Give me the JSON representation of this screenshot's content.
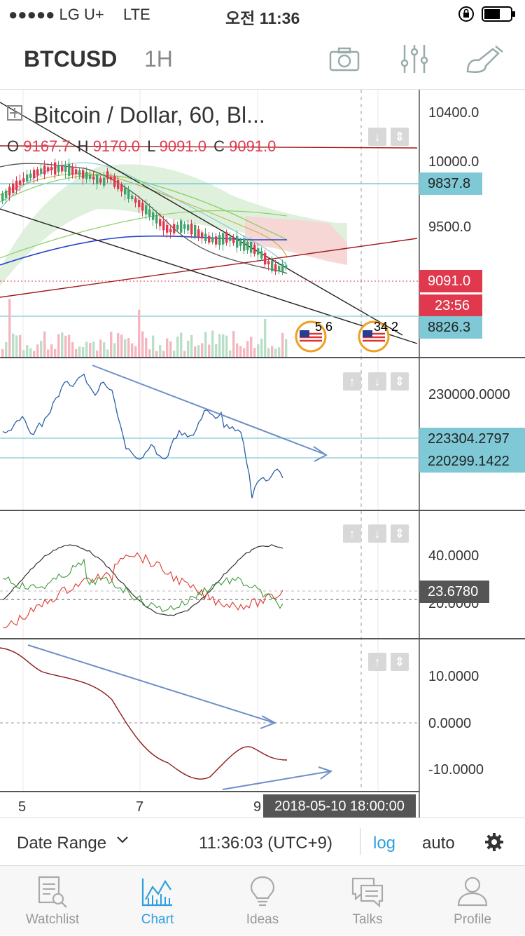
{
  "status_bar": {
    "carrier": "●●●●● LG U+",
    "network": "LTE",
    "time": "오전 11:36"
  },
  "app_bar": {
    "symbol": "BTCUSD",
    "interval": "1H",
    "icons": [
      "camera-icon",
      "indicators-icon",
      "drawing-tools-icon"
    ]
  },
  "main_pane": {
    "title": "Bitcoin / Dollar, 60, Bl...",
    "ohlc": {
      "o_label": "O",
      "o_value": "9167.7",
      "h_label": "H",
      "h_value": "9170.0",
      "l_label": "L",
      "l_value": "9091.0",
      "c_label": "C",
      "c_value": "9091.0"
    },
    "axis_labels": [
      "10400.0",
      "10000.0",
      "9500.0"
    ],
    "tags": {
      "upper_line": "9837.8",
      "last_price": "9091.0",
      "countdown": "23:56",
      "lower_line": "8826.3"
    },
    "events": [
      "5 6",
      "34 2"
    ],
    "colors": {
      "up": "#3fa56b",
      "down": "#e0394e",
      "tag_cyan": "#7fc9d6"
    }
  },
  "pane2": {
    "axis_labels": [
      "230000.0000"
    ],
    "tags": [
      "223304.2797",
      "220299.1422"
    ]
  },
  "pane3": {
    "axis_labels": [
      "40.0000",
      "20.0000"
    ],
    "tag": "23.6780"
  },
  "pane4": {
    "axis_labels": [
      "10.0000",
      "0.0000",
      "-10.0000"
    ]
  },
  "time_axis": {
    "ticks": [
      "5",
      "7",
      "9"
    ],
    "cursor_time": "2018-05-10 18:00:00"
  },
  "bottom_controls": {
    "date_range": "Date Range",
    "clock": "11:36:03 (UTC+9)",
    "log": "log",
    "auto": "auto"
  },
  "tab_bar": {
    "tabs": [
      {
        "label": "Watchlist",
        "icon": "watchlist-icon",
        "active": false
      },
      {
        "label": "Chart",
        "icon": "chart-icon",
        "active": true
      },
      {
        "label": "Ideas",
        "icon": "lightbulb-icon",
        "active": false
      },
      {
        "label": "Talks",
        "icon": "chat-icon",
        "active": false
      },
      {
        "label": "Profile",
        "icon": "profile-icon",
        "active": false
      }
    ]
  }
}
